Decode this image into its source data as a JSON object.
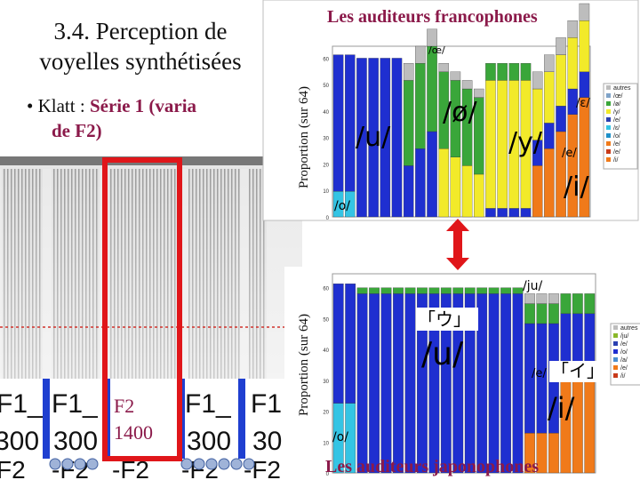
{
  "slide": {
    "title": "3.4. Perception de voyelles synthétisées",
    "bullet_prefix": "• Klatt : ",
    "bullet_bold": "Série 1 (varia",
    "bullet_line2": "de F2)"
  },
  "spectrogram": {
    "highlight_label": "F2",
    "highlight_value": "1400",
    "formant_labels": [
      "F1_",
      "F1_",
      "F1_",
      "F1"
    ],
    "formant_values": [
      "300",
      "300",
      "300",
      "30"
    ],
    "f2_labels": [
      "F2",
      "-F2",
      "-F2",
      "-F2",
      "-F2"
    ]
  },
  "top_chart": {
    "header": "Les auditeurs francophones",
    "ylabel": "Proportion (sur 64)",
    "yticks": [
      "0",
      "10",
      "20",
      "30",
      "40",
      "50",
      "60"
    ],
    "vowel_labels": [
      "/u/",
      "/ø/",
      "/y/",
      "/i/",
      "/o/",
      "/œ/",
      "/ɛ/",
      "/e/"
    ],
    "legend": [
      "autres",
      "/œ/",
      "/ø/",
      "/y/",
      "/e/",
      "/ɛ/",
      "/o/",
      "/e/",
      "/e/",
      "/i/"
    ]
  },
  "bottom_chart": {
    "header": "Les auditeurs japonophones",
    "ylabel": "Proportion (sur 64)",
    "yticks": [
      "0",
      "10",
      "20",
      "30",
      "40",
      "50",
      "60"
    ],
    "vowel_labels": [
      "「ウ」",
      "/u/",
      "「イ」",
      "/i/",
      "/ju/",
      "/e/",
      "/o/"
    ],
    "legend": [
      "autres",
      "/ju/",
      "/e/",
      "/o/",
      "/a/",
      "/e/",
      "/i/"
    ]
  },
  "colors": {
    "accent": "#8b1a4a",
    "highlight_box": "#e0161a",
    "arrow": "#e0161a",
    "blue": "#1f2fd0",
    "green": "#3aa63a",
    "yellow": "#f2ea2a",
    "orange": "#f07a1a",
    "cyan": "#34c4e4",
    "grey": "#bdbdbd"
  }
}
